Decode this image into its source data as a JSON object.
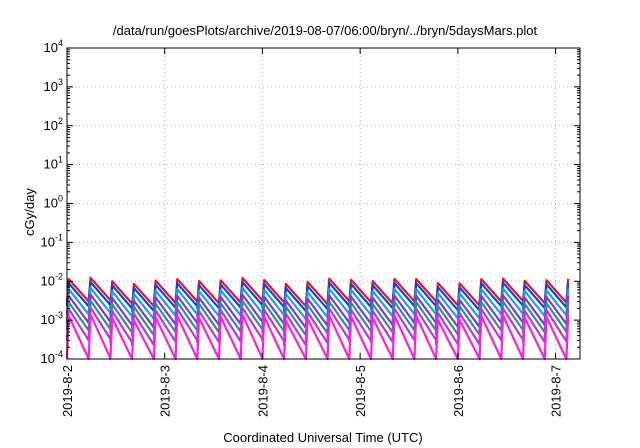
{
  "chart_data": {
    "type": "line",
    "title": "/data/run/goesPlots/archive/2019-08-07/06:00/bryn/../bryn/5daysMars.plot",
    "xlabel": "Coordinated Universal Time (UTC)",
    "ylabel": "cGy/day",
    "x_axis": {
      "type": "date",
      "range": [
        "2019-08-02",
        "2019-08-07 06:00"
      ],
      "ticks": [
        "2019-8-2",
        "2019-8-3",
        "2019-8-4",
        "2019-8-5",
        "2019-8-6",
        "2019-8-7"
      ]
    },
    "y_axis": {
      "scale": "log",
      "range": [
        0.0001,
        10000
      ],
      "ticks": [
        {
          "base": "10",
          "exp": "-4"
        },
        {
          "base": "10",
          "exp": "-3"
        },
        {
          "base": "10",
          "exp": "-2"
        },
        {
          "base": "10",
          "exp": "-1"
        },
        {
          "base": "10",
          "exp": "0"
        },
        {
          "base": "10",
          "exp": "1"
        },
        {
          "base": "10",
          "exp": "2"
        },
        {
          "base": "10",
          "exp": "3"
        },
        {
          "base": "10",
          "exp": "4"
        }
      ]
    },
    "grid": true,
    "sawtooth_cycles_per_day": 4.5,
    "series": [
      {
        "color": "#e0162b",
        "peak": 0.0105,
        "trough": 0.0028
      },
      {
        "color": "#1f3fd1",
        "peak": 0.0082,
        "trough": 0.0021
      },
      {
        "color": "#1aa0e8",
        "peak": 0.0058,
        "trough": 0.0013
      },
      {
        "color": "#7a3ad6",
        "peak": 0.0039,
        "trough": 0.00078
      },
      {
        "color": "#2f8f8f",
        "peak": 0.0027,
        "trough": 0.0005
      },
      {
        "color": "#b43ae0",
        "peak": 0.0018,
        "trough": 0.00028
      },
      {
        "color": "#ff1ee0",
        "peak": 0.0012,
        "trough": 9e-05
      }
    ]
  }
}
